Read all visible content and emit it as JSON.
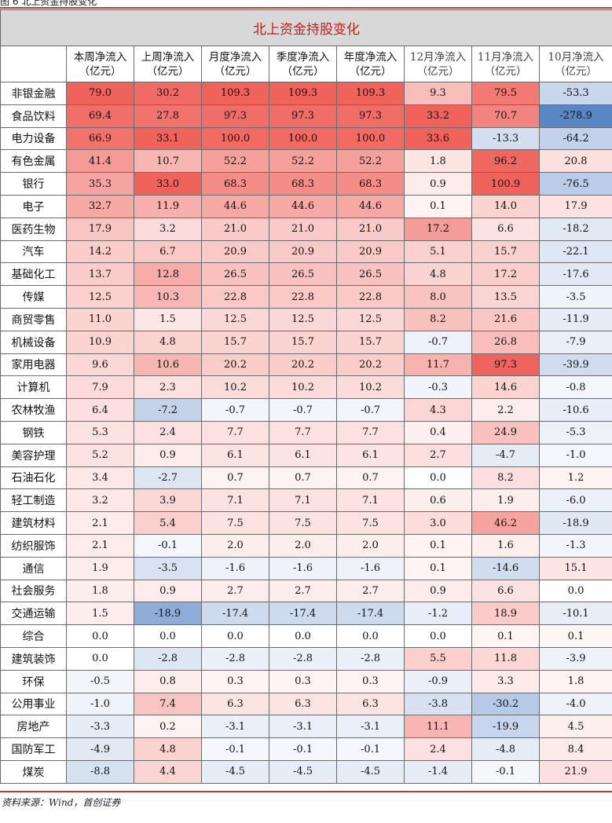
{
  "figure_label": "图 6 北上资金持股变化",
  "title": "北上资金持股变化",
  "columns": [
    {
      "l1": "本周净流入",
      "l2": "（亿元）"
    },
    {
      "l1": "上周净流入",
      "l2": "（亿元）"
    },
    {
      "l1": "月度净流入",
      "l2": "（亿元）"
    },
    {
      "l1": "季度净流入",
      "l2": "（亿元）"
    },
    {
      "l1": "年度净流入",
      "l2": "（亿元）"
    },
    {
      "l1": "12月净流入",
      "l2": "（亿元）"
    },
    {
      "l1": "11月净流入",
      "l2": "（亿元）"
    },
    {
      "l1": "10月净流入",
      "l2": "（亿元）"
    }
  ],
  "colors": {
    "positive_max": "#f0625c",
    "negative_max": "#5b86c6",
    "neutral": "#ffffff",
    "title_text": "#c0201a",
    "title_bg": "#d8d8d8",
    "rule": "#c0392b"
  },
  "rows": [
    {
      "industry": "非银金融",
      "values": [
        "79.0",
        "30.2",
        "109.3",
        "109.3",
        "109.3",
        "9.3",
        "79.5",
        "-53.3"
      ]
    },
    {
      "industry": "食品饮料",
      "values": [
        "69.4",
        "27.8",
        "97.3",
        "97.3",
        "97.3",
        "33.2",
        "70.7",
        "-278.9"
      ]
    },
    {
      "industry": "电力设备",
      "values": [
        "66.9",
        "33.1",
        "100.0",
        "100.0",
        "100.0",
        "33.6",
        "-13.3",
        "-64.2"
      ]
    },
    {
      "industry": "有色金属",
      "values": [
        "41.4",
        "10.7",
        "52.2",
        "52.2",
        "52.2",
        "1.8",
        "96.2",
        "20.8"
      ]
    },
    {
      "industry": "银行",
      "values": [
        "35.3",
        "33.0",
        "68.3",
        "68.3",
        "68.3",
        "0.9",
        "100.9",
        "-76.5"
      ]
    },
    {
      "industry": "电子",
      "values": [
        "32.7",
        "11.9",
        "44.6",
        "44.6",
        "44.6",
        "0.1",
        "14.0",
        "17.9"
      ]
    },
    {
      "industry": "医药生物",
      "values": [
        "17.9",
        "3.2",
        "21.0",
        "21.0",
        "21.0",
        "17.2",
        "6.6",
        "-18.2"
      ]
    },
    {
      "industry": "汽车",
      "values": [
        "14.2",
        "6.7",
        "20.9",
        "20.9",
        "20.9",
        "5.1",
        "15.7",
        "-22.1"
      ]
    },
    {
      "industry": "基础化工",
      "values": [
        "13.7",
        "12.8",
        "26.5",
        "26.5",
        "26.5",
        "4.8",
        "17.2",
        "-17.6"
      ]
    },
    {
      "industry": "传媒",
      "values": [
        "12.5",
        "10.3",
        "22.8",
        "22.8",
        "22.8",
        "8.0",
        "13.5",
        "-3.5"
      ]
    },
    {
      "industry": "商贸零售",
      "values": [
        "11.0",
        "1.5",
        "12.5",
        "12.5",
        "12.5",
        "8.2",
        "21.6",
        "-11.9"
      ]
    },
    {
      "industry": "机械设备",
      "values": [
        "10.9",
        "4.8",
        "15.7",
        "15.7",
        "15.7",
        "-0.7",
        "26.8",
        "-7.9"
      ]
    },
    {
      "industry": "家用电器",
      "values": [
        "9.6",
        "10.6",
        "20.2",
        "20.2",
        "20.2",
        "11.7",
        "97.3",
        "-39.9"
      ]
    },
    {
      "industry": "计算机",
      "values": [
        "7.9",
        "2.3",
        "10.2",
        "10.2",
        "10.2",
        "-0.3",
        "14.6",
        "-0.8"
      ]
    },
    {
      "industry": "农林牧渔",
      "values": [
        "6.4",
        "-7.2",
        "-0.7",
        "-0.7",
        "-0.7",
        "4.3",
        "2.2",
        "-10.6"
      ]
    },
    {
      "industry": "钢铁",
      "values": [
        "5.3",
        "2.4",
        "7.7",
        "7.7",
        "7.7",
        "0.4",
        "24.9",
        "-5.3"
      ]
    },
    {
      "industry": "美容护理",
      "values": [
        "5.2",
        "0.9",
        "6.1",
        "6.1",
        "6.1",
        "2.7",
        "-4.7",
        "-1.0"
      ]
    },
    {
      "industry": "石油石化",
      "values": [
        "3.4",
        "-2.7",
        "0.7",
        "0.7",
        "0.7",
        "0.0",
        "8.2",
        "1.2"
      ]
    },
    {
      "industry": "轻工制造",
      "values": [
        "3.2",
        "3.9",
        "7.1",
        "7.1",
        "7.1",
        "0.6",
        "1.9",
        "-6.0"
      ]
    },
    {
      "industry": "建筑材料",
      "values": [
        "2.1",
        "5.4",
        "7.5",
        "7.5",
        "7.5",
        "3.0",
        "46.2",
        "-18.9"
      ]
    },
    {
      "industry": "纺织服饰",
      "values": [
        "2.1",
        "-0.1",
        "2.0",
        "2.0",
        "2.0",
        "0.1",
        "1.6",
        "-1.3"
      ]
    },
    {
      "industry": "通信",
      "values": [
        "1.9",
        "-3.5",
        "-1.6",
        "-1.6",
        "-1.6",
        "0.1",
        "-14.6",
        "15.1"
      ]
    },
    {
      "industry": "社会服务",
      "values": [
        "1.8",
        "0.9",
        "2.7",
        "2.7",
        "2.7",
        "0.9",
        "6.6",
        "0.0"
      ]
    },
    {
      "industry": "交通运输",
      "values": [
        "1.5",
        "-18.9",
        "-17.4",
        "-17.4",
        "-17.4",
        "-1.2",
        "18.9",
        "-10.1"
      ]
    },
    {
      "industry": "综合",
      "values": [
        "0.0",
        "0.0",
        "0.0",
        "0.0",
        "0.0",
        "0.0",
        "0.1",
        "0.1"
      ]
    },
    {
      "industry": "建筑装饰",
      "values": [
        "0.0",
        "-2.8",
        "-2.8",
        "-2.8",
        "-2.8",
        "5.5",
        "11.8",
        "-3.9"
      ]
    },
    {
      "industry": "环保",
      "values": [
        "-0.5",
        "0.8",
        "0.3",
        "0.3",
        "0.3",
        "-0.9",
        "3.3",
        "1.8"
      ]
    },
    {
      "industry": "公用事业",
      "values": [
        "-1.0",
        "7.4",
        "6.3",
        "6.3",
        "6.3",
        "-3.8",
        "-30.2",
        "-4.0"
      ]
    },
    {
      "industry": "房地产",
      "values": [
        "-3.3",
        "0.2",
        "-3.1",
        "-3.1",
        "-3.1",
        "11.1",
        "-19.9",
        "4.5"
      ]
    },
    {
      "industry": "国防军工",
      "values": [
        "-4.9",
        "4.8",
        "-0.1",
        "-0.1",
        "-0.1",
        "2.4",
        "-4.8",
        "8.4"
      ]
    },
    {
      "industry": "煤炭",
      "values": [
        "-8.8",
        "4.4",
        "-4.5",
        "-4.5",
        "-4.5",
        "-1.4",
        "-0.1",
        "21.9"
      ]
    }
  ],
  "source": "资料来源：Wind，首创证券"
}
